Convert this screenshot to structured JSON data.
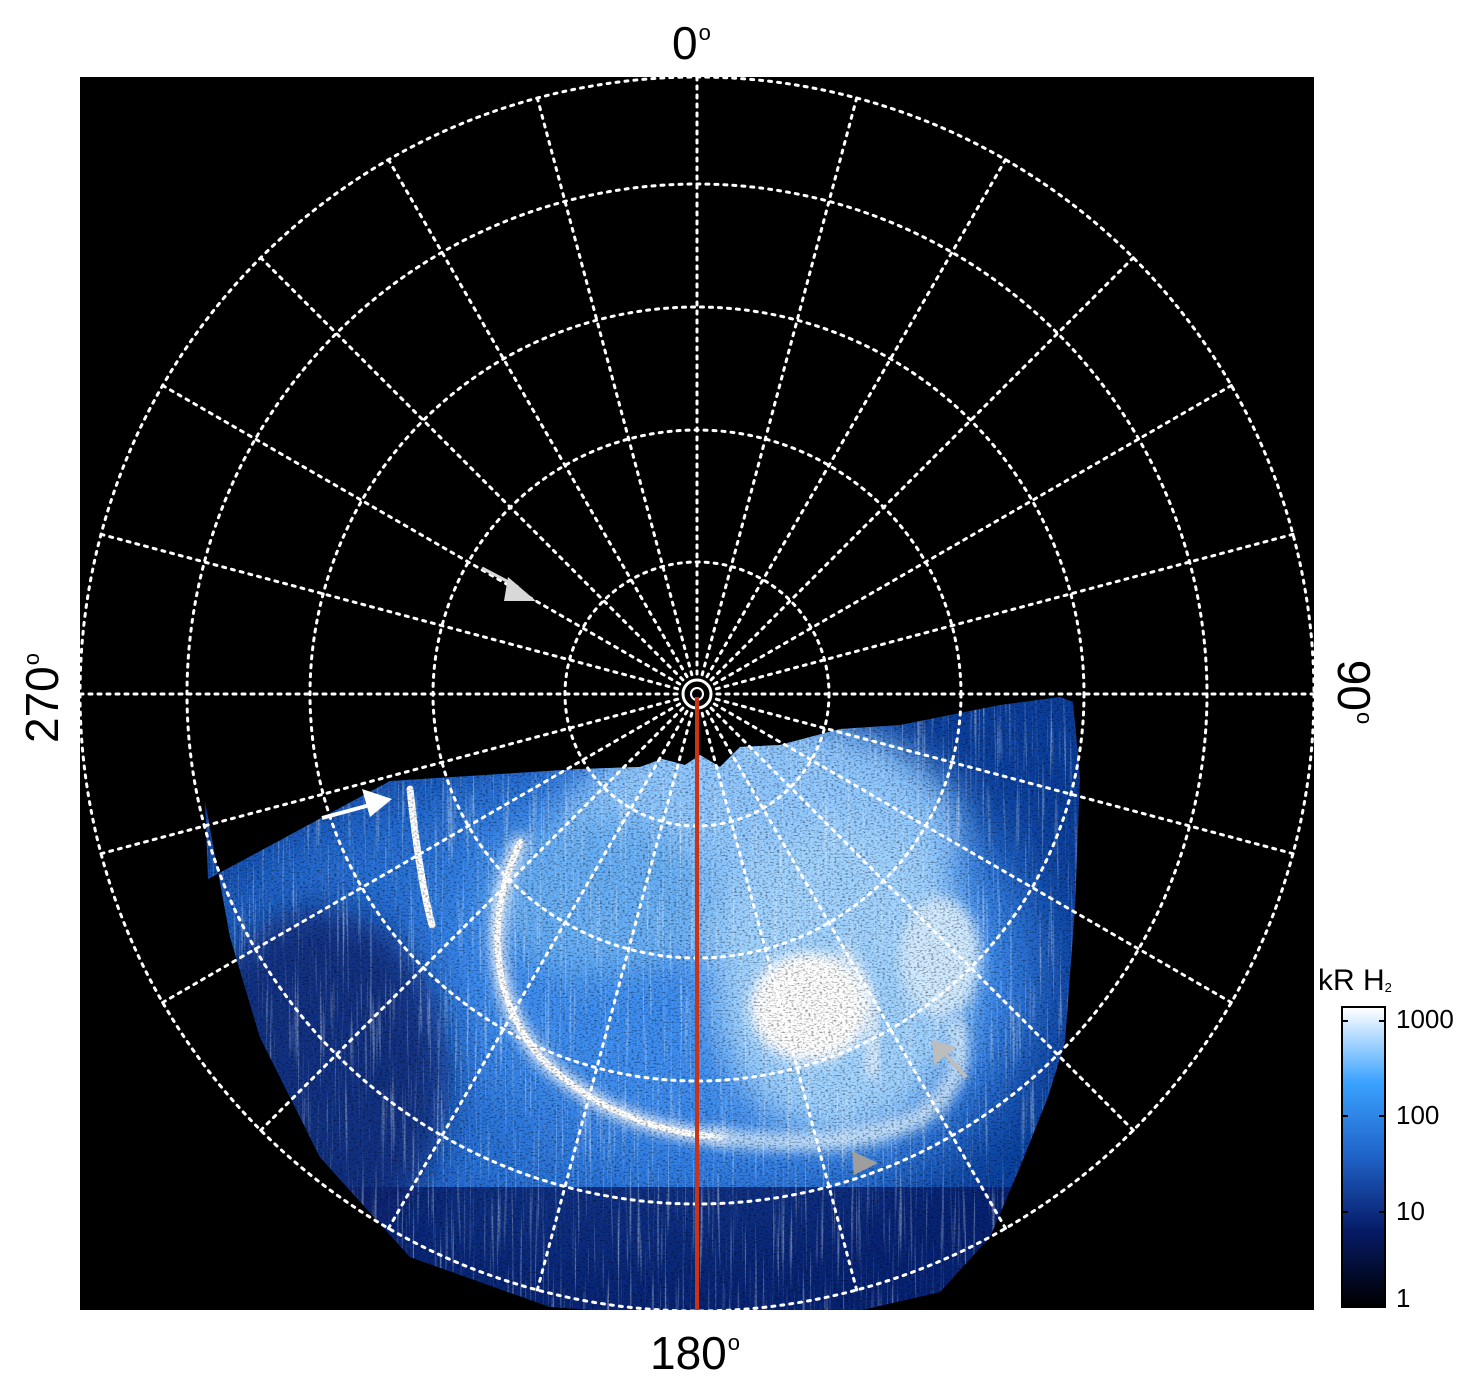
{
  "figure": {
    "labels": {
      "top": "0",
      "bottom": "180",
      "left": "270",
      "right": "90",
      "degree_symbol": "o"
    },
    "colorbar": {
      "title_main": "kR H",
      "title_sub": "2",
      "ticks": [
        "1000",
        "100",
        "10",
        "1"
      ],
      "scale": "log",
      "colors": [
        "#000000",
        "#061a66",
        "#1f62c8",
        "#3aa2ff",
        "#ffffff"
      ]
    },
    "plot": {
      "background": "#000000",
      "grid": "dotted white polar grid",
      "meridian_line_color": "#cc3314",
      "arrow_colors": {
        "primary": "#ffffff",
        "secondary": "#bdbdbd"
      }
    }
  }
}
